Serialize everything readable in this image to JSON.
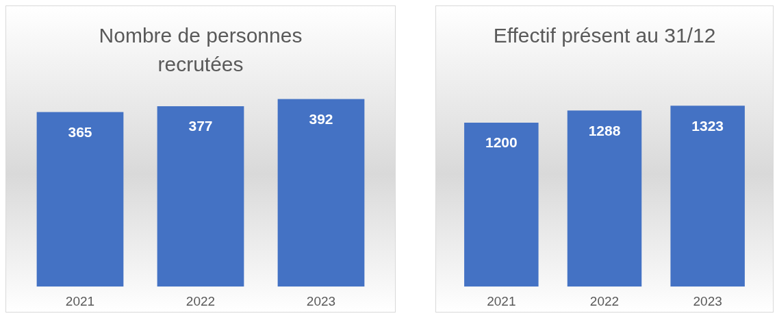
{
  "chart_data": [
    {
      "type": "bar",
      "title": "Nombre de personnes recrutées",
      "categories": [
        "2021",
        "2022",
        "2023"
      ],
      "values": [
        365,
        377,
        392
      ],
      "color": "#4472c4",
      "data_labels": true
    },
    {
      "type": "bar",
      "title": "Effectif présent au 31/12",
      "categories": [
        "2021",
        "2022",
        "2023"
      ],
      "values": [
        1200,
        1288,
        1323
      ],
      "color": "#4472c4",
      "data_labels": true
    }
  ]
}
